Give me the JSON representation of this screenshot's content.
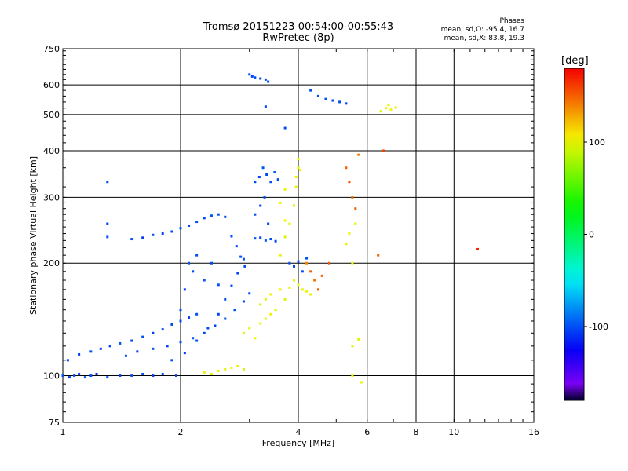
{
  "header": {
    "title": "Tromsø 20151223 00:54:00-00:55:43",
    "subtitle": "RwPretec (8p)"
  },
  "stats": {
    "heading": "Phases",
    "o_line": "mean, sd,O: -95.4, 16.7",
    "x_line": "mean, sd,X:  83.8, 19.3"
  },
  "colorbar": {
    "title": "[deg]",
    "ticks": [
      {
        "value": 100,
        "label": "100"
      },
      {
        "value": 0,
        "label": "0"
      },
      {
        "value": -100,
        "label": "-100"
      }
    ],
    "range": [
      -180,
      180
    ]
  },
  "chart_data": {
    "type": "scatter",
    "title": "Tromsø 20151223 00:54:00-00:55:43",
    "subtitle": "RwPretec (8p)",
    "xlabel": "Frequency [MHz]",
    "ylabel": "Stationary phase Virtual Height [km]",
    "xscale": "log",
    "yscale": "log",
    "xlim": [
      1,
      16
    ],
    "ylim": [
      75,
      750
    ],
    "grid": true,
    "x_ticks": [
      {
        "value": 1,
        "label": "1"
      },
      {
        "value": 2,
        "label": "2"
      },
      {
        "value": 4,
        "label": "4"
      },
      {
        "value": 6,
        "label": "6"
      },
      {
        "value": 8,
        "label": "8"
      },
      {
        "value": 10,
        "label": "10"
      },
      {
        "value": 16,
        "label": "16"
      }
    ],
    "y_ticks": [
      {
        "value": 75,
        "label": "75"
      },
      {
        "value": 100,
        "label": "100"
      },
      {
        "value": 200,
        "label": "200"
      },
      {
        "value": 300,
        "label": "300"
      },
      {
        "value": 400,
        "label": "400"
      },
      {
        "value": 500,
        "label": "500"
      },
      {
        "value": 600,
        "label": "600"
      },
      {
        "value": 750,
        "label": "750"
      }
    ],
    "color_scale": {
      "label": "[deg]",
      "min": -180,
      "max": 180
    },
    "series": [
      {
        "points": [
          [
            1.0,
            100,
            -100
          ],
          [
            1.04,
            99,
            -105
          ],
          [
            1.07,
            100,
            -98
          ],
          [
            1.1,
            101,
            -102
          ],
          [
            1.14,
            99,
            -95
          ],
          [
            1.18,
            100,
            -100
          ],
          [
            1.22,
            101,
            -108
          ],
          [
            1.3,
            99,
            -100
          ],
          [
            1.4,
            100,
            -103
          ],
          [
            1.5,
            100,
            -97
          ],
          [
            1.6,
            101,
            -100
          ],
          [
            1.7,
            100,
            -104
          ],
          [
            1.8,
            101,
            -99
          ],
          [
            1.95,
            100,
            -101
          ],
          [
            1.03,
            110,
            -100
          ],
          [
            1.1,
            114,
            -105
          ],
          [
            1.18,
            116,
            -98
          ],
          [
            1.25,
            118,
            -102
          ],
          [
            1.32,
            120,
            -100
          ],
          [
            1.4,
            122,
            -97
          ],
          [
            1.5,
            124,
            -103
          ],
          [
            1.6,
            127,
            -100
          ],
          [
            1.7,
            130,
            -105
          ],
          [
            1.8,
            133,
            -98
          ],
          [
            1.9,
            137,
            -101
          ],
          [
            2.0,
            140,
            -100
          ],
          [
            2.1,
            143,
            -104
          ],
          [
            2.2,
            146,
            -99
          ],
          [
            1.45,
            113,
            -100
          ],
          [
            1.55,
            116,
            -102
          ],
          [
            1.7,
            118,
            -98
          ],
          [
            1.85,
            120,
            -103
          ],
          [
            2.0,
            123,
            -100
          ],
          [
            2.15,
            126,
            -97
          ],
          [
            2.3,
            130,
            -101
          ],
          [
            2.45,
            136,
            -104
          ],
          [
            2.6,
            142,
            -100
          ],
          [
            2.75,
            150,
            -98
          ],
          [
            2.9,
            158,
            -102
          ],
          [
            3.0,
            166,
            -100
          ],
          [
            1.9,
            110,
            -100
          ],
          [
            2.05,
            115,
            -105
          ],
          [
            2.2,
            124,
            -99
          ],
          [
            2.35,
            134,
            -101
          ],
          [
            2.5,
            146,
            -103
          ],
          [
            2.6,
            160,
            -100
          ],
          [
            2.7,
            174,
            -98
          ],
          [
            2.8,
            188,
            -102
          ],
          [
            2.9,
            205,
            -100
          ],
          [
            1.5,
            232,
            -100
          ],
          [
            1.6,
            234,
            -104
          ],
          [
            1.7,
            238,
            -98
          ],
          [
            1.8,
            240,
            -102
          ],
          [
            1.9,
            243,
            -100
          ],
          [
            2.0,
            248,
            -97
          ],
          [
            2.1,
            252,
            -103
          ],
          [
            2.2,
            258,
            -100
          ],
          [
            2.3,
            264,
            -101
          ],
          [
            2.4,
            268,
            -99
          ],
          [
            2.5,
            270,
            -100
          ],
          [
            2.6,
            266,
            -102
          ],
          [
            2.7,
            236,
            -100
          ],
          [
            2.78,
            222,
            -104
          ],
          [
            2.85,
            208,
            -99
          ],
          [
            2.92,
            196,
            -101
          ],
          [
            2.0,
            150,
            -100
          ],
          [
            2.05,
            170,
            -104
          ],
          [
            2.1,
            200,
            -98
          ],
          [
            2.15,
            190,
            -102
          ],
          [
            2.2,
            210,
            -100
          ],
          [
            2.3,
            180,
            -97
          ],
          [
            2.4,
            200,
            -103
          ],
          [
            2.5,
            175,
            -100
          ],
          [
            3.1,
            330,
            -100
          ],
          [
            3.18,
            340,
            -104
          ],
          [
            3.25,
            360,
            -98
          ],
          [
            3.32,
            345,
            -102
          ],
          [
            3.4,
            330,
            -100
          ],
          [
            3.48,
            350,
            -97
          ],
          [
            3.55,
            335,
            -101
          ],
          [
            3.1,
            270,
            -100
          ],
          [
            3.2,
            285,
            -103
          ],
          [
            3.28,
            300,
            -99
          ],
          [
            3.35,
            255,
            -101
          ],
          [
            3.1,
            233,
            -100
          ],
          [
            3.2,
            234,
            -102
          ],
          [
            3.3,
            230,
            -98
          ],
          [
            3.4,
            232,
            -101
          ],
          [
            3.5,
            229,
            -100
          ],
          [
            3.0,
            640,
            -100
          ],
          [
            3.05,
            632,
            -102
          ],
          [
            3.1,
            628,
            -98
          ],
          [
            3.2,
            624,
            -101
          ],
          [
            3.3,
            620,
            -100
          ],
          [
            3.35,
            612,
            -99
          ],
          [
            3.8,
            200,
            -100
          ],
          [
            3.9,
            196,
            -104
          ],
          [
            4.0,
            202,
            -98
          ],
          [
            4.1,
            190,
            -101
          ],
          [
            4.2,
            206,
            -100
          ],
          [
            4.3,
            580,
            -100
          ],
          [
            4.5,
            560,
            -102
          ],
          [
            4.7,
            550,
            -98
          ],
          [
            4.9,
            545,
            -101
          ],
          [
            5.1,
            540,
            -100
          ],
          [
            5.3,
            535,
            -99
          ],
          [
            1.3,
            330,
            -100
          ],
          [
            1.3,
            255,
            -102
          ],
          [
            1.3,
            235,
            -98
          ],
          [
            3.7,
            460,
            -100
          ],
          [
            3.3,
            525,
            -101
          ]
        ]
      },
      {
        "points": [
          [
            3.2,
            155,
            95
          ],
          [
            3.3,
            160,
            100
          ],
          [
            3.4,
            165,
            103
          ],
          [
            3.5,
            150,
            98
          ],
          [
            3.6,
            170,
            102
          ],
          [
            3.7,
            160,
            97
          ],
          [
            3.8,
            172,
            100
          ],
          [
            3.2,
            138,
            101
          ],
          [
            3.3,
            142,
            99
          ],
          [
            3.4,
            146,
            103
          ],
          [
            2.9,
            130,
            98
          ],
          [
            3.0,
            134,
            100
          ],
          [
            3.1,
            126,
            102
          ],
          [
            2.3,
            102,
            100
          ],
          [
            2.4,
            101,
            96
          ],
          [
            2.5,
            103,
            102
          ],
          [
            2.6,
            104,
            99
          ],
          [
            2.7,
            105,
            101
          ],
          [
            2.8,
            106,
            100
          ],
          [
            2.9,
            104,
            98
          ],
          [
            3.6,
            210,
            100
          ],
          [
            3.7,
            235,
            97
          ],
          [
            3.7,
            260,
            103
          ],
          [
            3.8,
            255,
            100
          ],
          [
            3.9,
            285,
            98
          ],
          [
            3.6,
            290,
            101
          ],
          [
            3.7,
            315,
            100
          ],
          [
            3.95,
            340,
            100
          ],
          [
            4.0,
            360,
            98
          ],
          [
            4.0,
            380,
            102
          ],
          [
            3.95,
            320,
            99
          ],
          [
            4.05,
            355,
            100
          ],
          [
            3.9,
            180,
            100
          ],
          [
            4.0,
            175,
            103
          ],
          [
            4.1,
            170,
            98
          ],
          [
            4.2,
            168,
            101
          ],
          [
            4.3,
            165,
            100
          ],
          [
            5.5,
            120,
            100
          ],
          [
            5.7,
            125,
            98
          ],
          [
            5.5,
            100,
            102
          ],
          [
            5.8,
            96,
            100
          ],
          [
            5.3,
            225,
            100
          ],
          [
            5.4,
            240,
            102
          ],
          [
            5.6,
            255,
            98
          ],
          [
            5.5,
            200,
            101
          ],
          [
            6.5,
            510,
            98
          ],
          [
            6.7,
            520,
            100
          ],
          [
            6.9,
            515,
            102
          ],
          [
            7.1,
            522,
            97
          ],
          [
            6.8,
            530,
            101
          ]
        ]
      },
      {
        "points": [
          [
            4.2,
            200,
            140
          ],
          [
            4.3,
            190,
            150
          ],
          [
            4.4,
            180,
            145
          ],
          [
            4.5,
            170,
            155
          ],
          [
            4.6,
            185,
            148
          ],
          [
            4.8,
            200,
            152
          ],
          [
            5.3,
            360,
            150
          ],
          [
            5.4,
            330,
            155
          ],
          [
            5.5,
            300,
            145
          ],
          [
            5.7,
            390,
            140
          ],
          [
            5.6,
            280,
            150
          ],
          [
            6.6,
            400,
            160
          ],
          [
            11.5,
            218,
            170
          ],
          [
            6.4,
            210,
            150
          ]
        ]
      }
    ]
  }
}
